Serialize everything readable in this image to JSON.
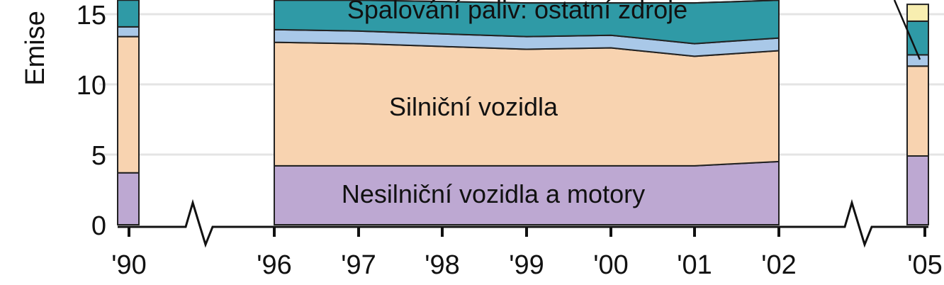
{
  "chart_data": {
    "type": "area",
    "ylabel": "Emise",
    "ylim": [
      0,
      16
    ],
    "grid": true,
    "x_tick_labels": [
      "'90",
      "'96",
      "'97",
      "'98",
      "'99",
      "'00",
      "'01",
      "'02",
      "'05"
    ],
    "y_ticks": [
      0,
      5,
      10,
      15
    ],
    "x": [
      "1990",
      "1996",
      "1997",
      "1998",
      "1999",
      "2000",
      "2001",
      "2002",
      "2005"
    ],
    "axis_breaks": [
      "1990–1996",
      "2002–2005"
    ],
    "series": [
      {
        "name": "Nesilniční vozidla a motory",
        "color": "#bda8d2",
        "values": [
          3.7,
          4.2,
          4.2,
          4.2,
          4.2,
          4.2,
          4.2,
          4.5,
          4.9
        ]
      },
      {
        "name": "Silniční vozidla",
        "color": "#f8d3b0",
        "values": [
          9.7,
          8.8,
          8.7,
          8.5,
          8.3,
          8.4,
          7.8,
          7.9,
          6.4
        ]
      },
      {
        "name": "",
        "color": "#a9c8e8",
        "values": [
          0.7,
          0.9,
          0.9,
          0.9,
          0.9,
          0.9,
          0.9,
          0.9,
          0.8
        ]
      },
      {
        "name": "Spalování paliv: ostatní zdroje",
        "color": "#2f9aa6",
        "values": [
          1.9,
          2.1,
          2.2,
          2.3,
          2.4,
          2.3,
          2.9,
          2.7,
          2.4
        ]
      },
      {
        "name": "",
        "color": "#f8eeb0",
        "values": [
          0,
          0,
          0,
          0,
          0,
          0,
          0,
          0,
          1.2
        ]
      }
    ],
    "annotations": [
      {
        "text": "Spalování paliv: ostatní zdroje"
      },
      {
        "text": "Silniční vozidla"
      },
      {
        "text": "Nesilniční vozidla a motory"
      }
    ]
  }
}
